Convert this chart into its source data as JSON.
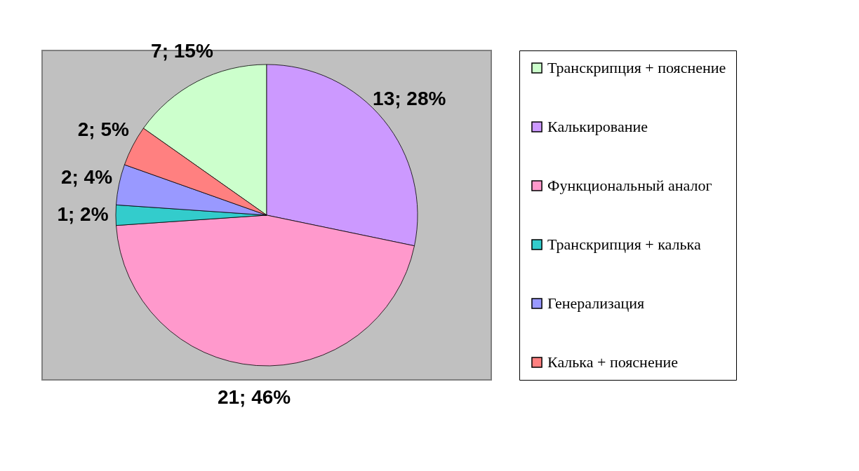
{
  "chart_data": {
    "type": "pie",
    "categories": [
      "Транскрипция + пояснение",
      "Калькирование",
      "Функциональный аналог",
      "Транскрипция + калька",
      "Генерализация",
      "Калька + пояснение"
    ],
    "values": [
      7,
      13,
      21,
      1,
      2,
      2
    ],
    "value_labels": [
      "7; 15%",
      "13; 28%",
      "21; 46%",
      "1; 2%",
      "2; 4%",
      "2; 5%"
    ],
    "colors": [
      "#ccffcc",
      "#cc99ff",
      "#ff99cc",
      "#33cccc",
      "#9999ff",
      "#ff8080"
    ],
    "legend": "right"
  }
}
